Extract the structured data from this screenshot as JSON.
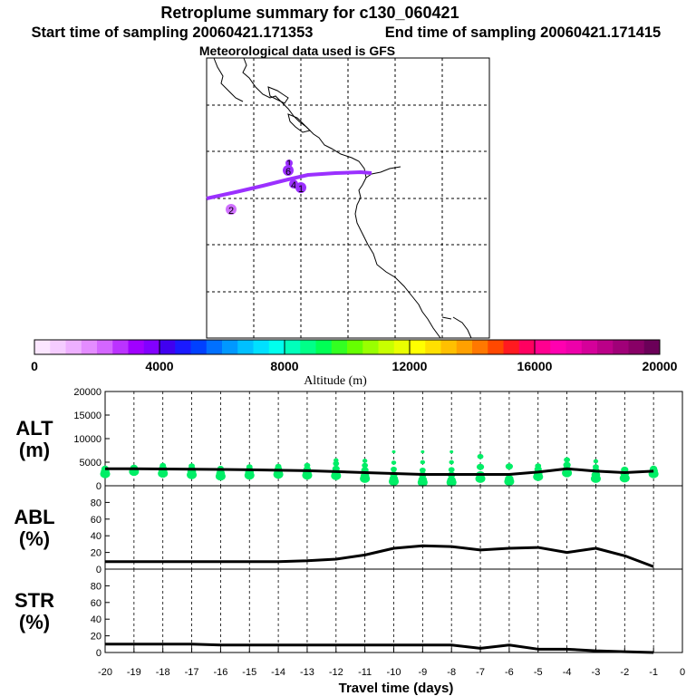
{
  "header": {
    "title": "Retroplume summary for c130_060421",
    "start_time": "Start time of sampling 20060421.171353",
    "end_time": "End time of sampling 20060421.171415",
    "met_data": "Meteorological data used is GFS"
  },
  "map": {
    "trajectory_color": "#9b30ff",
    "markers": [
      {
        "label": "1",
        "color": "#9b30ff"
      },
      {
        "label": "2",
        "color": "#d070ff"
      },
      {
        "label": "6",
        "color": "#9b30ff"
      },
      {
        "label": "4",
        "color": "#9b30ff"
      },
      {
        "label": "1",
        "color": "#9b30ff"
      }
    ]
  },
  "colorbar": {
    "label": "Altitude (m)",
    "tick_labels": [
      "0",
      "4000",
      "8000",
      "12000",
      "16000",
      "20000"
    ],
    "colors": [
      "#fbe6ff",
      "#f5ccff",
      "#eeb0ff",
      "#e48cff",
      "#d466ff",
      "#bb33ff",
      "#a000ff",
      "#8200ff",
      "#4000f0",
      "#1a1aff",
      "#0040ff",
      "#0070ff",
      "#0098ff",
      "#00c0ff",
      "#00e0ff",
      "#00ffee",
      "#00ffbb",
      "#00ff88",
      "#00ff55",
      "#33ff22",
      "#66ff00",
      "#99ff00",
      "#c8ff00",
      "#eaff00",
      "#ffff00",
      "#ffe000",
      "#ffc000",
      "#ffa000",
      "#ff7800",
      "#ff4800",
      "#ff1a20",
      "#ff0060",
      "#ff0090",
      "#ff00b0",
      "#ee00aa",
      "#d5009a",
      "#bb0088",
      "#a00078",
      "#880066",
      "#6b0058"
    ]
  },
  "panels": [
    {
      "label_line1": "ALT",
      "label_line2": "(m)",
      "y_ticks": [
        "0",
        "5000",
        "10000",
        "15000",
        "20000"
      ]
    },
    {
      "label_line1": "ABL",
      "label_line2": "(%)",
      "y_ticks": [
        "0",
        "20",
        "40",
        "60",
        "80"
      ]
    },
    {
      "label_line1": "STR",
      "label_line2": "(%)",
      "y_ticks": [
        "0",
        "20",
        "40",
        "60",
        "80"
      ]
    }
  ],
  "x_axis": {
    "label": "Travel time (days)",
    "tick_labels": [
      "-20",
      "-19",
      "-18",
      "-17",
      "-16",
      "-15",
      "-14",
      "-13",
      "-12",
      "-11",
      "-10",
      "-9",
      "-8",
      "-7",
      "-6",
      "-5",
      "-4",
      "-3",
      "-2",
      "-1",
      "0"
    ]
  },
  "chart_data": {
    "type": "line",
    "title": "Retroplume summary for c130_060421",
    "xlabel": "Travel time (days)",
    "xlim": [
      -20,
      0
    ],
    "x": [
      -20,
      -19,
      -18,
      -17,
      -16,
      -15,
      -14,
      -13,
      -12,
      -11,
      -10,
      -9,
      -8,
      -7,
      -6,
      -5,
      -4,
      -3,
      -2,
      -1
    ],
    "series": [
      {
        "name": "ALT (m)",
        "ylim": [
          0,
          20000
        ],
        "values": [
          3600,
          3600,
          3550,
          3500,
          3450,
          3400,
          3300,
          3200,
          3000,
          2800,
          2600,
          2400,
          2400,
          2400,
          2400,
          2900,
          3600,
          3100,
          2800,
          3100
        ]
      },
      {
        "name": "ABL (%)",
        "ylim": [
          0,
          100
        ],
        "values": [
          9,
          9,
          9,
          9,
          9,
          9,
          9,
          10,
          12,
          17,
          25,
          28,
          27,
          23,
          25,
          26,
          20,
          25,
          16,
          3
        ]
      },
      {
        "name": "STR (%)",
        "ylim": [
          0,
          100
        ],
        "values": [
          10,
          10,
          10,
          10,
          9,
          9,
          9,
          9,
          9,
          9,
          9,
          9,
          9,
          5,
          9,
          4,
          4,
          2,
          1,
          0
        ]
      }
    ],
    "alt_scatter_color": "#00ee66",
    "alt_scatter": [
      {
        "x": -20,
        "ys": [
          2500,
          3000,
          3600
        ]
      },
      {
        "x": -19,
        "ys": [
          3000,
          3400,
          3800
        ]
      },
      {
        "x": -18,
        "ys": [
          2600,
          3100,
          3800,
          4300
        ]
      },
      {
        "x": -17,
        "ys": [
          2300,
          2900,
          3600,
          4200
        ]
      },
      {
        "x": -16,
        "ys": [
          2000,
          2600,
          3200,
          3700
        ]
      },
      {
        "x": -15,
        "ys": [
          2200,
          2800,
          3400,
          4000
        ]
      },
      {
        "x": -14,
        "ys": [
          2400,
          3000,
          3600,
          4100
        ]
      },
      {
        "x": -13,
        "ys": [
          2200,
          2800,
          3500,
          4300
        ]
      },
      {
        "x": -12,
        "ys": [
          2100,
          2700,
          3600,
          4700,
          5400
        ]
      },
      {
        "x": -11,
        "ys": [
          1500,
          2100,
          3300,
          4300,
          5300
        ]
      },
      {
        "x": -10,
        "ys": [
          900,
          1500,
          2400,
          3500,
          4900,
          7200
        ]
      },
      {
        "x": -9,
        "ys": [
          700,
          1300,
          2300,
          3300,
          5000,
          7200
        ]
      },
      {
        "x": -8,
        "ys": [
          700,
          1200,
          2300,
          3400,
          5000,
          7200
        ]
      },
      {
        "x": -7,
        "ys": [
          1500,
          2300,
          4000,
          6200
        ]
      },
      {
        "x": -6,
        "ys": [
          900,
          1500,
          4100
        ]
      },
      {
        "x": -5,
        "ys": [
          1900,
          2600,
          3500,
          4200
        ]
      },
      {
        "x": -4,
        "ys": [
          2700,
          3400,
          4400,
          5500
        ]
      },
      {
        "x": -3,
        "ys": [
          1500,
          2300,
          3200,
          4000,
          5200
        ]
      },
      {
        "x": -2,
        "ys": [
          1600,
          2600,
          3400
        ]
      },
      {
        "x": -1,
        "ys": [
          2500,
          3100,
          3600
        ]
      }
    ]
  }
}
